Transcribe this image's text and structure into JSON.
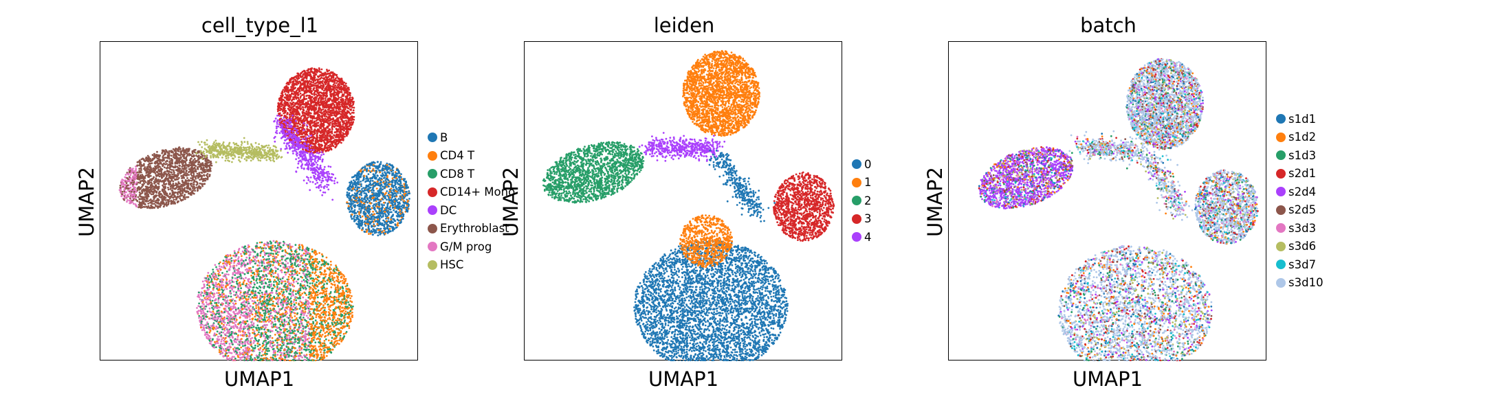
{
  "chart_data": [
    {
      "type": "scatter",
      "title": "cell_type_l1",
      "xlabel": "UMAP1",
      "ylabel": "UMAP2",
      "legend_position": "right",
      "categories": [
        "B",
        "CD4 T",
        "CD8 T",
        "CD14+ Mono",
        "DC",
        "Erythroblast",
        "G/M prog",
        "HSC"
      ],
      "colors": [
        "#1f77b4",
        "#ff7f0e",
        "#279e68",
        "#d62728",
        "#aa40fc",
        "#8c564b",
        "#e377c2",
        "#b5bd61"
      ]
    },
    {
      "type": "scatter",
      "title": "leiden",
      "xlabel": "UMAP1",
      "ylabel": "UMAP2",
      "legend_position": "right",
      "categories": [
        "0",
        "1",
        "2",
        "3",
        "4"
      ],
      "colors": [
        "#1f77b4",
        "#ff7f0e",
        "#279e68",
        "#d62728",
        "#aa40fc"
      ]
    },
    {
      "type": "scatter",
      "title": "batch",
      "xlabel": "UMAP1",
      "ylabel": "UMAP2",
      "legend_position": "right",
      "categories": [
        "s1d1",
        "s1d2",
        "s1d3",
        "s2d1",
        "s2d4",
        "s2d5",
        "s3d3",
        "s3d6",
        "s3d7",
        "s3d10"
      ],
      "colors": [
        "#1f77b4",
        "#ff7f0e",
        "#279e68",
        "#d62728",
        "#aa40fc",
        "#8c564b",
        "#e377c2",
        "#b5bd61",
        "#17becf",
        "#aec7e8"
      ]
    }
  ]
}
